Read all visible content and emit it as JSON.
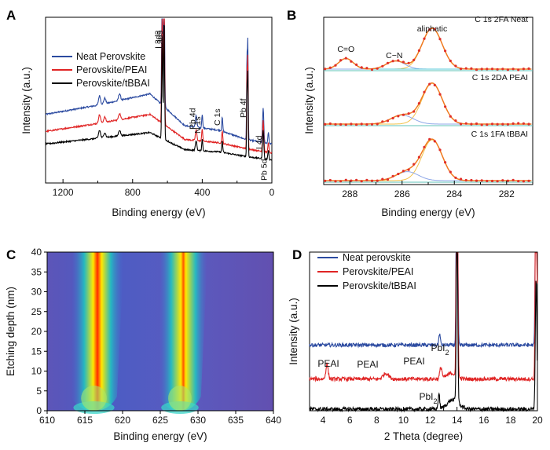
{
  "chart_data": [
    {
      "panel": "A",
      "type": "line",
      "xlabel": "Binding energy (eV)",
      "ylabel": "Intensity (a.u.)",
      "xlim": [
        1300,
        0
      ],
      "x_ticks": [
        "1200",
        "800",
        "400",
        "0"
      ],
      "x_tick_values": [
        1200,
        800,
        400,
        0
      ],
      "legend_position": "top-left",
      "series": [
        {
          "name": "Neat Perovskite",
          "color": "#2b4aa0",
          "baseline": [
            [
              1300,
              0.52
            ],
            [
              1000,
              0.6
            ],
            [
              700,
              0.7
            ],
            [
              500,
              0.42
            ],
            [
              300,
              0.38
            ],
            [
              150,
              0.3
            ],
            [
              0,
              0.26
            ]
          ]
        },
        {
          "name": "Perovskite/PEAI",
          "color": "#e02424",
          "baseline": [
            [
              1300,
              0.37
            ],
            [
              1000,
              0.44
            ],
            [
              700,
              0.52
            ],
            [
              500,
              0.3
            ],
            [
              300,
              0.27
            ],
            [
              150,
              0.22
            ],
            [
              0,
              0.18
            ]
          ]
        },
        {
          "name": "Perovskite/tBBAI",
          "color": "#000000",
          "baseline": [
            [
              1300,
              0.26
            ],
            [
              1000,
              0.31
            ],
            [
              700,
              0.36
            ],
            [
              500,
              0.21
            ],
            [
              300,
              0.19
            ],
            [
              150,
              0.15
            ],
            [
              0,
              0.12
            ]
          ]
        }
      ],
      "peaks": [
        {
          "x": 990,
          "h": 0.08,
          "w": 8
        },
        {
          "x": 960,
          "h": 0.05,
          "w": 8
        },
        {
          "x": 875,
          "h": 0.06,
          "w": 8
        },
        {
          "x": 630,
          "h": 1.05,
          "w": 4
        },
        {
          "x": 619,
          "h": 1.25,
          "w": 4
        },
        {
          "x": 435,
          "h": 0.1,
          "w": 6
        },
        {
          "x": 400,
          "h": 0.12,
          "w": 4
        },
        {
          "x": 285,
          "h": 0.12,
          "w": 4
        },
        {
          "x": 143,
          "h": 0.7,
          "w": 3
        },
        {
          "x": 138,
          "h": 0.85,
          "w": 3
        },
        {
          "x": 50,
          "h": 0.3,
          "w": 5
        },
        {
          "x": 20,
          "h": 0.1,
          "w": 4
        }
      ],
      "annotations": [
        "I 3d3",
        "I 3d5",
        "Pb 4d",
        "N 1s",
        "C 1s",
        "Pb 4f",
        "I 4d",
        "Pb 5d"
      ]
    },
    {
      "panel": "B",
      "type": "line",
      "xlabel": "Binding energy (eV)",
      "ylabel": "Intensity (a.u.)",
      "xlim": [
        289,
        281
      ],
      "x_ticks": [
        "288",
        "286",
        "284",
        "282"
      ],
      "x_tick_values": [
        288,
        286,
        284,
        282
      ],
      "subplots": [
        {
          "label": "C 1s 2FA Neat",
          "components": [
            {
              "center": 284.85,
              "height": 1.0,
              "width": 0.55
            },
            {
              "center": 286.25,
              "height": 0.2,
              "width": 0.5
            },
            {
              "center": 288.15,
              "height": 0.26,
              "width": 0.4
            }
          ],
          "component_annotations": [
            "C=O",
            "C−N",
            "aliphatic"
          ]
        },
        {
          "label": "C 1s 2DA PEAI",
          "components": [
            {
              "center": 284.85,
              "height": 1.0,
              "width": 0.55
            },
            {
              "center": 286.0,
              "height": 0.22,
              "width": 0.6
            }
          ]
        },
        {
          "label": "C 1s 1FA tBBAI",
          "components": [
            {
              "center": 284.85,
              "height": 1.0,
              "width": 0.55
            },
            {
              "center": 285.8,
              "height": 0.22,
              "width": 0.6
            }
          ]
        }
      ]
    },
    {
      "panel": "C",
      "type": "heatmap",
      "xlabel": "Binding energy (eV)",
      "ylabel": "Etching depth (nm)",
      "xlim": [
        610,
        640
      ],
      "ylim": [
        0,
        40
      ],
      "x_ticks": [
        "610",
        "615",
        "620",
        "625",
        "630",
        "635",
        "640"
      ],
      "y_ticks": [
        "0",
        "5",
        "10",
        "15",
        "20",
        "25",
        "30",
        "35",
        "40"
      ],
      "peaks": [
        {
          "center_top": 616.8,
          "center_bottom": 616.2
        },
        {
          "center_top": 628.2,
          "center_bottom": 627.6
        }
      ]
    },
    {
      "panel": "D",
      "type": "line",
      "xlabel": "2 Theta (degree)",
      "ylabel": "Intensity (a.u.)",
      "xlim": [
        3,
        20
      ],
      "x_ticks": [
        "4",
        "6",
        "8",
        "10",
        "12",
        "14",
        "16",
        "18",
        "20"
      ],
      "x_tick_values": [
        4,
        6,
        8,
        10,
        12,
        14,
        16,
        18,
        20
      ],
      "legend_position": "top-left",
      "series": [
        {
          "name": "Neat perovskite",
          "color": "#2b4aa0",
          "offset": 0.17,
          "peaks": [
            {
              "x": 12.7,
              "h": 0.03,
              "w": 0.08
            },
            {
              "x": 14.0,
              "h": 0.9,
              "w": 0.07
            },
            {
              "x": 19.9,
              "h": 0.9,
              "w": 0.07
            }
          ]
        },
        {
          "name": "Perovskite/PEAI",
          "color": "#e02424",
          "offset": 0.08,
          "peaks": [
            {
              "x": 4.3,
              "h": 0.04,
              "w": 0.12
            },
            {
              "x": 8.7,
              "h": 0.015,
              "w": 0.3
            },
            {
              "x": 12.8,
              "h": 0.03,
              "w": 0.12
            },
            {
              "x": 14.0,
              "h": 0.95,
              "w": 0.07
            },
            {
              "x": 19.9,
              "h": 0.95,
              "w": 0.07
            }
          ]
        },
        {
          "name": "Perovskite/tBBAI",
          "color": "#000000",
          "offset": 0.0,
          "peaks": [
            {
              "x": 12.65,
              "h": 0.04,
              "w": 0.08
            },
            {
              "x": 14.0,
              "h": 0.55,
              "w": 0.07
            },
            {
              "x": 19.9,
              "h": 0.35,
              "w": 0.08
            }
          ]
        }
      ],
      "annotations": [
        {
          "text": "PbI",
          "sub": "2",
          "target": 12.7,
          "series": 0
        },
        {
          "text": "PEAI",
          "target": 5.8,
          "series": 1
        },
        {
          "text": "PEAI",
          "target": 8.8,
          "series": 1
        },
        {
          "text": "PEAI",
          "target": 11.5,
          "series": 1
        },
        {
          "text": "PbI",
          "sub": "2",
          "target": 12.6,
          "series": 2
        }
      ]
    }
  ],
  "panel_labels": [
    "A",
    "B",
    "C",
    "D"
  ]
}
